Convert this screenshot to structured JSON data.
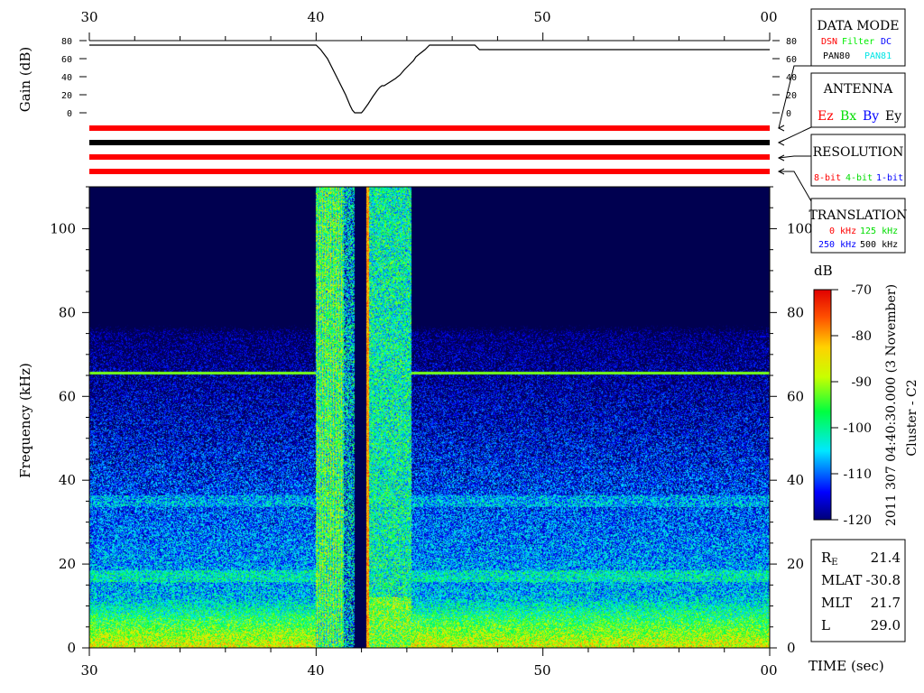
{
  "colors": {
    "red": "#ff0000",
    "green": "#00ff00",
    "blue": "#0000ff",
    "cyan": "#00ffff",
    "black": "#000000",
    "panel_bg": "#000050"
  },
  "time_axis": {
    "tick_labels": [
      "30",
      "40",
      "50",
      "00"
    ],
    "label": "TIME (sec)"
  },
  "gain_panel": {
    "ylabel": "Gain (dB)",
    "tick_labels": [
      "80",
      "60",
      "40",
      "20",
      "0"
    ]
  },
  "spectrogram": {
    "ylabel": "Frequency (kHz)",
    "tick_labels": [
      "100",
      "80",
      "60",
      "40",
      "20",
      "0"
    ]
  },
  "colorbar": {
    "unit": "dB",
    "tick_labels": [
      "-70",
      "-80",
      "-90",
      "-100",
      "-110",
      "-120"
    ],
    "title_line1": "2011 307 04:40:30.000 (3 November)",
    "title_line2": "Cluster - C2"
  },
  "legend": {
    "data_mode": {
      "title": "DATA MODE",
      "row1": [
        "DSN",
        "Filter",
        "DC"
      ],
      "row2": [
        "PAN80",
        "PAN81"
      ]
    },
    "antenna": {
      "title": "ANTENNA",
      "items": [
        "Ez",
        "Bx",
        "By",
        "Ey"
      ]
    },
    "resolution": {
      "title": "RESOLUTION",
      "items": [
        "8-bit",
        "4-bit",
        "1-bit"
      ]
    },
    "translation": {
      "title": "TRANSLATION",
      "row1": [
        "0 kHz",
        "125 kHz"
      ],
      "row2": [
        "250 kHz",
        "500 kHz"
      ]
    }
  },
  "ephemeris": {
    "rows": [
      {
        "label": "R",
        "sub": "E",
        "value": "21.4"
      },
      {
        "label": "MLAT",
        "sub": "",
        "value": "-30.8"
      },
      {
        "label": "MLT",
        "sub": "",
        "value": "21.7"
      },
      {
        "label": "L",
        "sub": "",
        "value": "29.0"
      }
    ]
  },
  "chart_data": {
    "type": "heatmap",
    "x_unit": "seconds after 04:40:00",
    "xlim": [
      30,
      60
    ],
    "ylim": [
      0,
      110
    ],
    "clim": [
      -120,
      -70
    ],
    "gain_ylim": [
      0,
      80
    ],
    "gain_curve": {
      "x": [
        30.0,
        40.0,
        40.2,
        40.5,
        40.9,
        41.3,
        41.5,
        41.6,
        41.7,
        41.8,
        42.0,
        42.1,
        42.3,
        42.5,
        42.7,
        42.8,
        42.9,
        43.0,
        43.5,
        43.7,
        43.9,
        44.1,
        44.3,
        44.4,
        44.6,
        44.8,
        45.0,
        47.0,
        47.2,
        60.0
      ],
      "y": [
        75,
        75,
        70,
        60,
        40,
        20,
        8,
        3,
        0,
        0,
        0,
        3,
        10,
        18,
        25,
        28,
        30,
        30,
        38,
        42,
        48,
        53,
        58,
        62,
        66,
        70,
        75,
        75,
        70,
        70
      ]
    },
    "stripes": [
      {
        "row": 1,
        "color": "red"
      },
      {
        "row": 2,
        "color": "black"
      },
      {
        "row": 3,
        "color": "red"
      },
      {
        "row": 4,
        "color": "red"
      }
    ],
    "features": [
      {
        "kind": "line",
        "freq_khz": 65.5,
        "db": -92
      },
      {
        "kind": "band",
        "freq_khz": 35,
        "db": -108
      },
      {
        "kind": "band",
        "freq_khz": 17,
        "db": -109
      },
      {
        "kind": "gap",
        "x": [
          40.0,
          44.2
        ],
        "note": "broadband interference"
      }
    ]
  }
}
